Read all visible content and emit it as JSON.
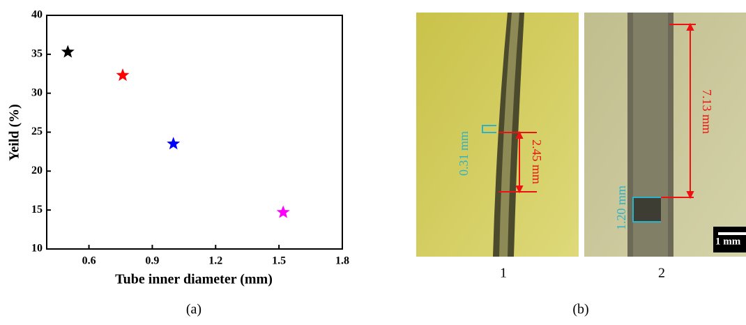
{
  "chart_data": {
    "type": "scatter",
    "x_label": "Tube inner diameter (mm)",
    "y_label": "Yeild (%)",
    "x": [
      0.5,
      0.76,
      1.0,
      1.52
    ],
    "values": [
      35.3,
      32.3,
      23.5,
      14.7
    ],
    "colors": [
      "#000000",
      "#ff0000",
      "#0000ff",
      "#ff00ff"
    ],
    "xlim": [
      0.4,
      1.8
    ],
    "xticks": [
      0.6,
      0.9,
      1.2,
      1.5,
      1.8
    ],
    "ylim": [
      10,
      40
    ],
    "yticks": [
      10,
      15,
      20,
      25,
      30,
      35,
      40
    ]
  },
  "figure": {
    "panel_a_label": "(a)",
    "panel_b_label": "(b)",
    "image_1_label": "1",
    "image_2_label": "2",
    "annotations": [
      "0.31 mm",
      "2.45 mm",
      "1.20 mm",
      "7.13 mm"
    ],
    "scale_bar": "1 mm"
  }
}
